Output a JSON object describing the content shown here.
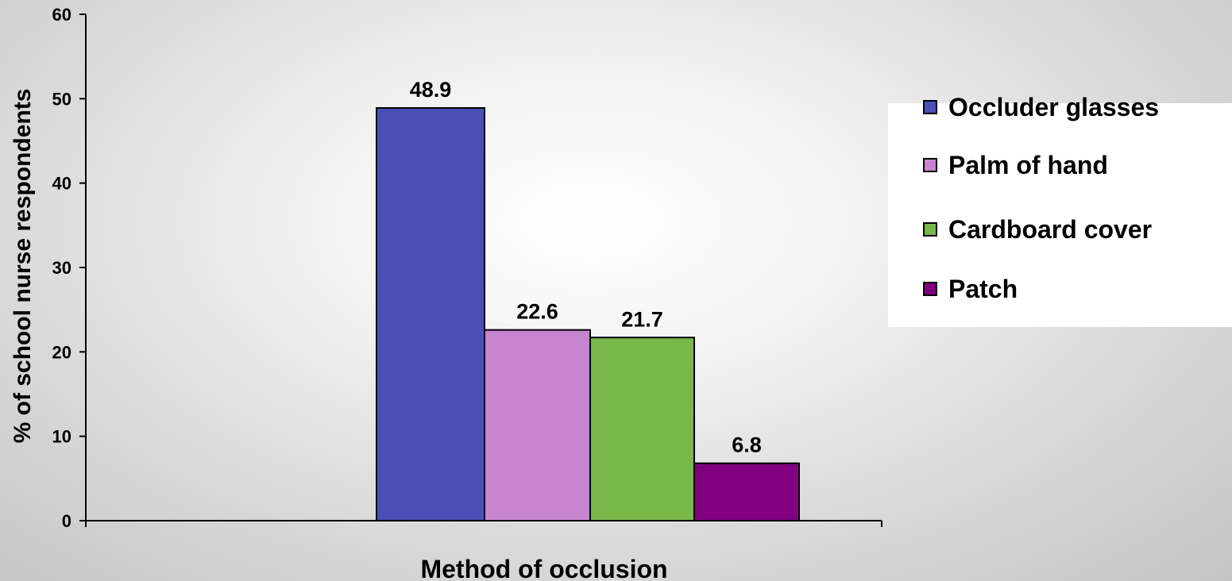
{
  "chart_data": {
    "type": "bar",
    "xlabel": "Method of occlusion",
    "ylabel": "% of school nurse respondents",
    "ylim": [
      0,
      60
    ],
    "yticks": [
      0,
      10,
      20,
      30,
      40,
      50,
      60
    ],
    "grid": false,
    "legend_position": "right",
    "series": [
      {
        "name": "Occluder glasses",
        "value": 48.9,
        "label": "48.9",
        "color": "#4b4fb5"
      },
      {
        "name": "Palm of hand",
        "value": 22.6,
        "label": "22.6",
        "color": "#c785cf"
      },
      {
        "name": "Cardboard cover",
        "value": 21.7,
        "label": "21.7",
        "color": "#79b74b"
      },
      {
        "name": "Patch",
        "value": 6.8,
        "label": "6.8",
        "color": "#800080"
      }
    ]
  }
}
